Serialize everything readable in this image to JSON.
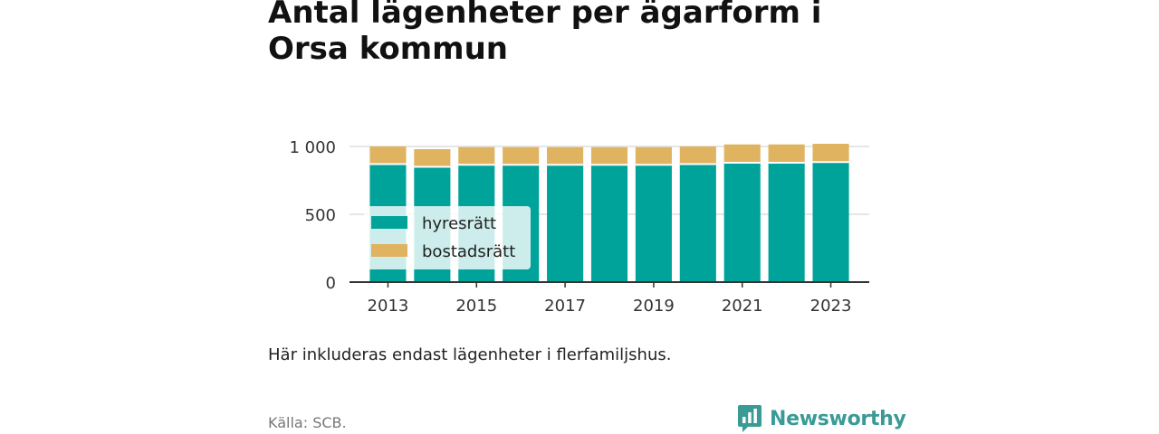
{
  "title": "Antal lägenheter per ägarform i Orsa kommun",
  "note": "Här inkluderas endast lägenheter i flerfamiljshus.",
  "source": "Källa: SCB.",
  "brand": {
    "name": "Newsworthy",
    "icon": "newsworthy-logo-icon",
    "color": "#3a9b96"
  },
  "chart_data": {
    "type": "bar",
    "stacked": true,
    "categories": [
      "2013",
      "2014",
      "2015",
      "2016",
      "2017",
      "2018",
      "2019",
      "2020",
      "2021",
      "2022",
      "2023"
    ],
    "x_tick_labels": [
      "2013",
      "2015",
      "2017",
      "2019",
      "2021",
      "2023"
    ],
    "series": [
      {
        "name": "hyresrätt",
        "color": "#00a39a",
        "values": [
          870,
          850,
          865,
          865,
          865,
          865,
          865,
          870,
          880,
          880,
          885
        ]
      },
      {
        "name": "bostadsrätt",
        "color": "#dfb35f",
        "values": [
          130,
          130,
          130,
          130,
          130,
          130,
          130,
          130,
          135,
          135,
          135
        ]
      }
    ],
    "ylim": [
      0,
      1000
    ],
    "y_ticks": [
      0,
      500,
      1000
    ],
    "y_tick_labels": [
      "0",
      "500",
      "1 000"
    ],
    "grid": true,
    "legend_position": "bottom-left"
  }
}
